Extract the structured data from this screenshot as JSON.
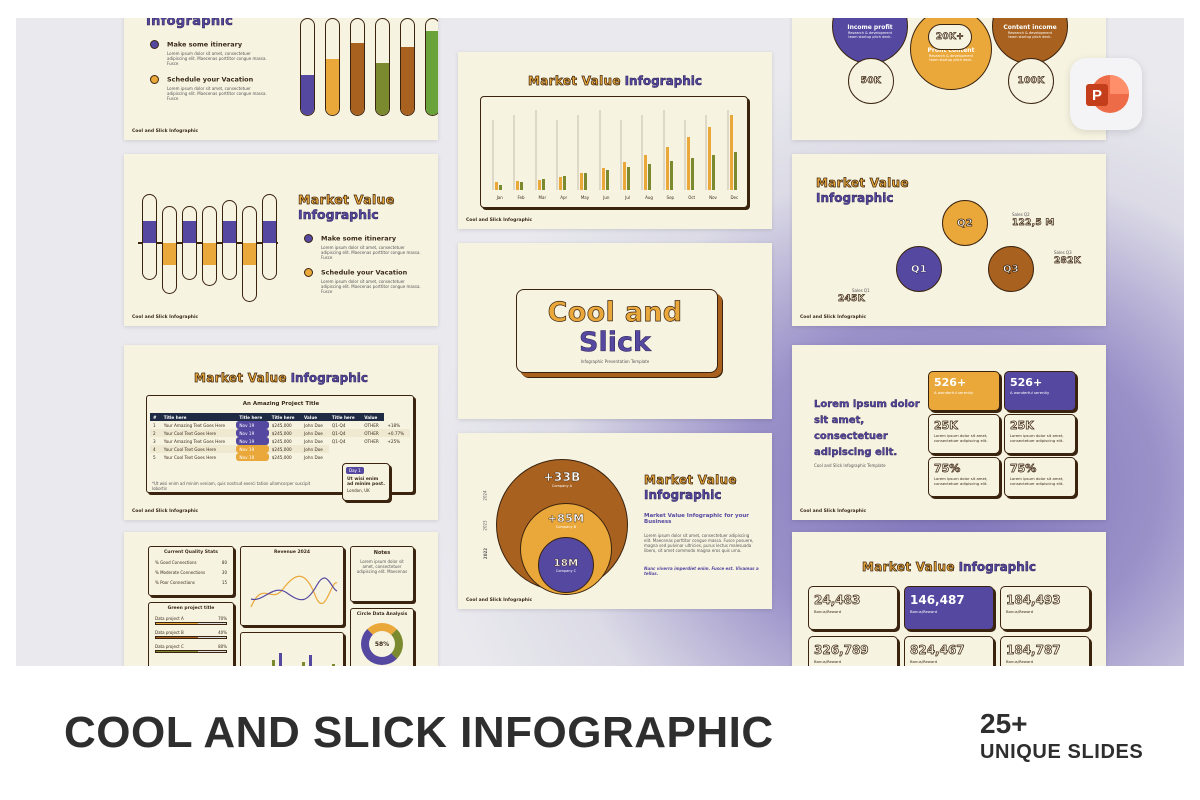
{
  "slide_infographic_top": {
    "title": "Infographic",
    "items": [
      "Make some itinerary",
      "Schedule your Vacation"
    ],
    "body": "Lorem ipsum dolor sit amet, consectetuer adipiscing elit. Maecenas porttitor congue massa. Fusce",
    "brand": "Cool and Slick Infographic"
  },
  "slide_capsules": {
    "title_a": "Market Value",
    "title_b": "Infographic",
    "items": [
      "Make some itinerary",
      "Schedule your Vacation"
    ],
    "body": "Lorem ipsum dolor sit amet, consectetuer adipiscing elit. Maecenas porttitor congue massa. Fusce",
    "brand": "Cool and Slick Infographic"
  },
  "slide_table": {
    "title_a": "Market Value",
    "title_b": "Infographic",
    "table_title": "An Amazing Project Title",
    "header": [
      "#",
      "Title here",
      "Title here",
      "Title here",
      "Value",
      "Title here",
      "Value"
    ],
    "rows": [
      [
        "1",
        "Your Amazing Text Goes Here",
        "Nov 19",
        "$245,000",
        "John Doe",
        "Q1-Q4",
        "OTHER",
        "+18%"
      ],
      [
        "2",
        "Your Cool Text Goes Here",
        "Nov 19",
        "$245,000",
        "John Doe",
        "Q1-Q4",
        "OTHER",
        "+0.77%"
      ],
      [
        "3",
        "Your Amazing Text Goes Here",
        "Nov 19",
        "$245,000",
        "John Doe",
        "Q1-Q4",
        "OTHER",
        "+25%"
      ],
      [
        "4",
        "Your Cool Text Goes Here",
        "Nov 19",
        "$245,000",
        "John Doe"
      ],
      [
        "5",
        "Your Cool Text Goes Here",
        "Nov 19",
        "$245,000",
        "John Doe"
      ]
    ],
    "note": "*Ut wisi enim ad minim veniam, quis nostrud exerci tation ullamcorper suscipit lobortis",
    "callout": [
      "Day 1",
      "Ut wisi enim ad minim post.",
      "London, UK"
    ],
    "brand": "Cool and Slick Infographic"
  },
  "slide_dashboard": {
    "stats_title": "Current Quality Stats",
    "stats": [
      [
        "% Good Connections",
        "80"
      ],
      [
        "% Moderate Connections",
        "30"
      ],
      [
        "% Poor Connections",
        "15"
      ]
    ],
    "revenue_title": "Revenue 2024",
    "notes_title": "Notes",
    "notes_body": "Lorem ipsum dolor sit amet, consectetuer adipiscing elit. Maecenas",
    "projects_title": "Green project title",
    "projects": [
      [
        "Data project A",
        "70%"
      ],
      [
        "Data project B",
        "40%"
      ],
      [
        "Data project C",
        "80%"
      ]
    ],
    "circle_title": "Circle Data Analysis",
    "circle_value": "58%"
  },
  "slide_bars": {
    "title_a": "Market Value",
    "title_b": "Infographic",
    "months": [
      "Jan",
      "Feb",
      "Mar",
      "Apr",
      "May",
      "Jun",
      "Jul",
      "Aug",
      "Sep",
      "Oct",
      "Nov",
      "Dec"
    ],
    "brand": "Cool and Slick Infographic"
  },
  "slide_cover": {
    "title_a": "Cool and",
    "title_b": "Slick",
    "subtitle": "Infographic Presentation Template"
  },
  "slide_circles": {
    "values": [
      "+33B",
      "+85M",
      "18M"
    ],
    "captions": [
      "Company A",
      "Company B",
      "Company C"
    ],
    "years": [
      "2024",
      "2023",
      "2022"
    ],
    "title_a": "Market Value",
    "title_b": "Infographic",
    "subtitle": "Market Value Infographic for your Business",
    "body": "Lorem ipsum dolor sit amet, consectetuer adipiscing elit. Maecenas porttitor congue massa. Fusce posuere, magna sed pulvinar ultricies, purus lectus malesuada libero, sit amet commodo magna eros quis urna.",
    "quote": "Nunc viverra imperdiet enim. Fusce est. Vivamus a tellus.",
    "brand": "Cool and Slick Infographic"
  },
  "slide_profit": {
    "income": "Income profit",
    "income_body": "Research & development team startup pitch deck.",
    "top_value": "20K+",
    "profit": "Profit content",
    "profit_body": "Research & development team startup pitch deck.",
    "content": "Content income",
    "content_body": "Research & development team startup pitch deck.",
    "left_value": "50K",
    "right_value": "100K"
  },
  "slide_quarters": {
    "title_a": "Market Value",
    "title_b": "Infographic",
    "quarters": [
      "Q1",
      "Q2",
      "Q3"
    ],
    "sales_labels": [
      "Sales Q1",
      "Sales Q2",
      "Sales Q3"
    ],
    "sales_values": [
      "245K",
      "122,5 M",
      "282K"
    ],
    "brand": "Cool and Slick Infographic"
  },
  "slide_stats": {
    "heading": "Lorem ipsum dolor sit amet, consectetuer adipiscing elit.",
    "template": "Cool and Slick Infographic Template",
    "cards": [
      [
        "526+",
        "A wonderful serenity"
      ],
      [
        "526+",
        "A wonderful serenity"
      ],
      [
        "25K",
        "Lorem ipsum dolor sit amet, consectetuer adipiscing elit."
      ],
      [
        "25K",
        "Lorem ipsum dolor sit amet, consectetuer adipiscing elit."
      ],
      [
        "75%",
        "Lorem ipsum dolor sit amet, consectetuer adipiscing elit."
      ],
      [
        "75%",
        "Lorem ipsum dolor sit amet, consectetuer adipiscing elit."
      ]
    ],
    "brand": "Cool and Slick Infographic"
  },
  "slide_numbers": {
    "title_a": "Market Value",
    "title_b": "Infographic",
    "numbers": [
      "24,483",
      "146,487",
      "184,493",
      "326,789",
      "824,467",
      "184,787"
    ],
    "caption": "Bonus/Reward"
  },
  "footer": {
    "title": "COOL AND SLICK INFOGRAPHIC",
    "count": "25+",
    "subtitle": "UNIQUE SLIDES"
  }
}
